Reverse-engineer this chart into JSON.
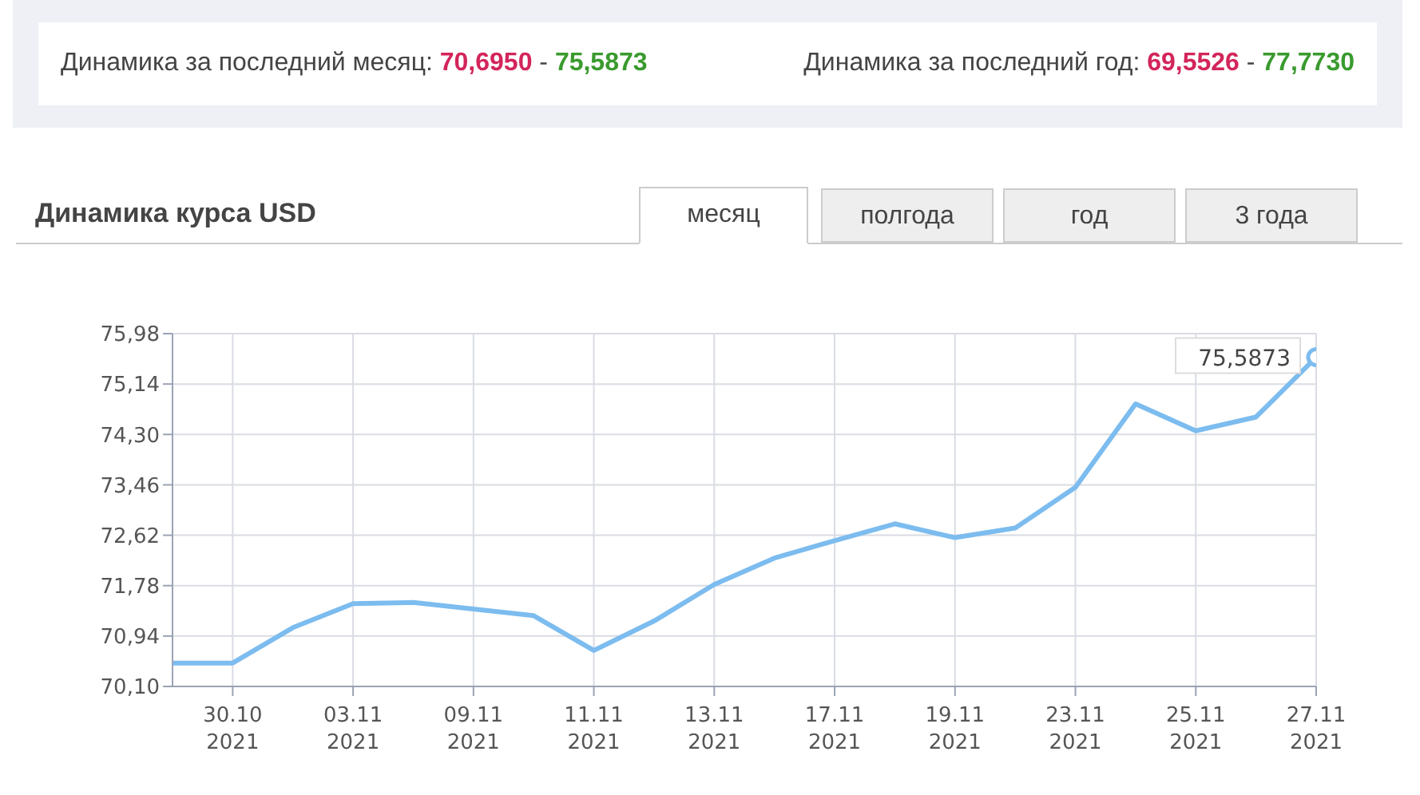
{
  "chart_data": {
    "type": "line",
    "title": "Динамика курса USD",
    "annotations": [
      "Динамика за последний месяц: 70,6950 - 75,5873",
      "Динамика за последний год: 69,5526 - 77,7730",
      "месяц",
      "полгода",
      "год",
      "3 года"
    ],
    "categories": [
      null,
      "30.10 2021",
      null,
      "03.11 2021",
      null,
      "09.11 2021",
      null,
      "11.11 2021",
      null,
      "13.11 2021",
      null,
      "17.11 2021",
      null,
      "19.11 2021",
      null,
      "23.11 2021",
      null,
      "25.11 2021",
      null,
      "27.11 2021"
    ],
    "series": [
      {
        "color": "#7cbcef",
        "values": [
          70.49,
          70.49,
          71.08,
          71.48,
          71.5,
          71.39,
          71.28,
          70.7,
          71.19,
          71.8,
          72.24,
          72.53,
          72.81,
          72.58,
          72.74,
          73.42,
          74.81,
          74.36,
          74.59,
          75.5873
        ],
        "value_labels": [
          null,
          null,
          null,
          null,
          null,
          null,
          null,
          null,
          null,
          null,
          null,
          null,
          null,
          null,
          null,
          null,
          null,
          null,
          null,
          "75,5873"
        ]
      }
    ],
    "ylim": [
      70.1,
      75.98
    ],
    "yticks": [
      {
        "value": 70.1,
        "label": "70,10"
      },
      {
        "value": 70.94,
        "label": "70,94"
      },
      {
        "value": 71.78,
        "label": "71,78"
      },
      {
        "value": 72.62,
        "label": "72,62"
      },
      {
        "value": 73.46,
        "label": "73,46"
      },
      {
        "value": 74.3,
        "label": "74,30"
      },
      {
        "value": 75.14,
        "label": "75,14"
      },
      {
        "value": 75.98,
        "label": "75,98"
      }
    ],
    "grid": true,
    "legend": false
  }
}
